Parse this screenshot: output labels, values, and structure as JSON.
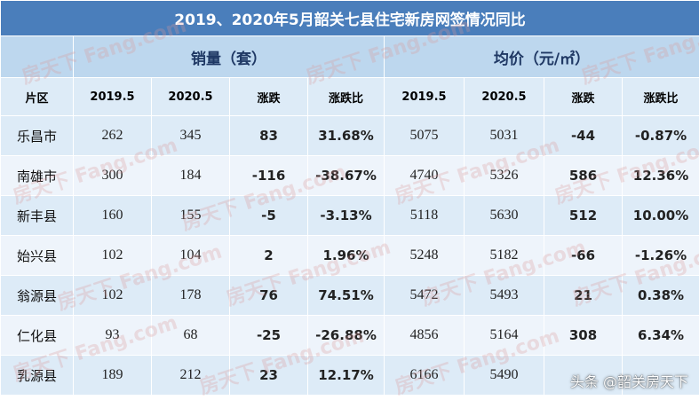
{
  "title": "2019、2020年5月韶关七县住宅新房网签情况同比",
  "groups": {
    "sales": "销量（套）",
    "price": "均价（元/㎡）"
  },
  "headers": [
    "片区",
    "2019.5",
    "2020.5",
    "涨跌",
    "涨跌比",
    "2019.5",
    "2020.5",
    "涨跌",
    "涨跌比"
  ],
  "rows": [
    {
      "area": "乐昌市",
      "s2019": "262",
      "s2020": "345",
      "s_chg": "83",
      "s_pct": "31.68%",
      "p2019": "5075",
      "p2020": "5031",
      "p_chg": "-44",
      "p_pct": "-0.87%"
    },
    {
      "area": "南雄市",
      "s2019": "300",
      "s2020": "184",
      "s_chg": "-116",
      "s_pct": "-38.67%",
      "p2019": "4740",
      "p2020": "5326",
      "p_chg": "586",
      "p_pct": "12.36%"
    },
    {
      "area": "新丰县",
      "s2019": "160",
      "s2020": "155",
      "s_chg": "-5",
      "s_pct": "-3.13%",
      "p2019": "5118",
      "p2020": "5630",
      "p_chg": "512",
      "p_pct": "10.00%"
    },
    {
      "area": "始兴县",
      "s2019": "102",
      "s2020": "104",
      "s_chg": "2",
      "s_pct": "1.96%",
      "p2019": "5248",
      "p2020": "5182",
      "p_chg": "-66",
      "p_pct": "-1.26%"
    },
    {
      "area": "翁源县",
      "s2019": "102",
      "s2020": "178",
      "s_chg": "76",
      "s_pct": "74.51%",
      "p2019": "5472",
      "p2020": "5493",
      "p_chg": "21",
      "p_pct": "0.38%"
    },
    {
      "area": "仁化县",
      "s2019": "93",
      "s2020": "68",
      "s_chg": "-25",
      "s_pct": "-26.88%",
      "p2019": "4856",
      "p2020": "5164",
      "p_chg": "308",
      "p_pct": "6.34%"
    },
    {
      "area": "乳源县",
      "s2019": "189",
      "s2020": "212",
      "s_chg": "23",
      "s_pct": "12.17%",
      "p2019": "6166",
      "p2020": "5490",
      "p_chg": "",
      "p_pct": ""
    }
  ],
  "watermark_text": "房天下 Fang.com",
  "caption": "头条 @韶关房天下",
  "colors": {
    "up": "#c00000",
    "down": "#00b050",
    "title_bg": "#4a7ebb"
  }
}
